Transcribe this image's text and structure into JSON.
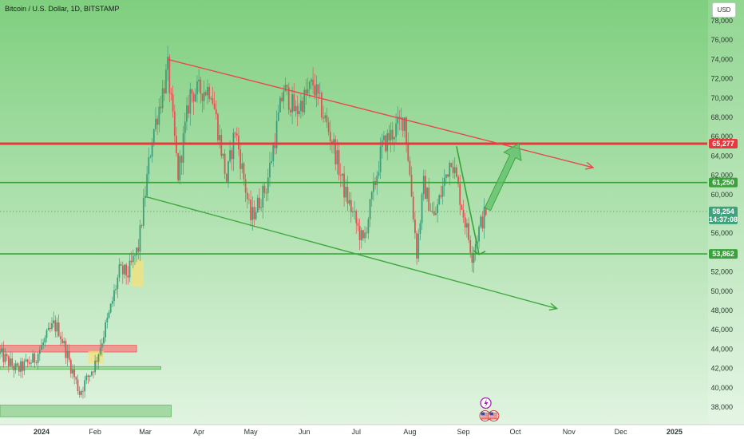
{
  "header": {
    "title": "Bitcoin / U.S. Dollar, 1D, BITSTAMP",
    "currency": "USD"
  },
  "colors": {
    "background_top": "#7fcf7f",
    "background_bottom": "#e4f5e4",
    "up_candle": "#3f9e7a",
    "down_candle": "#e35353",
    "resistance": "#e8383d",
    "support": "#3aa23a",
    "trend_upper": "#e8484d",
    "trend_lower": "#3fa83f",
    "zone_red": "#f28b8b",
    "zone_green": "#9ad49a",
    "highlight": "#f5e27a"
  },
  "chart_data": {
    "type": "candlestick",
    "title": "Bitcoin / U.S. Dollar, 1D, BITSTAMP",
    "x_unit": "date",
    "x_range": [
      "2023-12-08",
      "2025-01-20"
    ],
    "ylim": [
      37000,
      79000
    ],
    "yticks": [
      38000,
      40000,
      42000,
      44000,
      46000,
      48000,
      50000,
      52000,
      54000,
      56000,
      60000,
      62000,
      64000,
      66000,
      68000,
      70000,
      72000,
      74000,
      76000,
      78000
    ],
    "ytick_labels": [
      "38,000",
      "40,000",
      "42,000",
      "44,000",
      "46,000",
      "48,000",
      "50,000",
      "52,000",
      "54,000",
      "56,000",
      "60,000",
      "62,000",
      "64,000",
      "66,000",
      "68,000",
      "70,000",
      "72,000",
      "74,000",
      "76,000",
      "78,000"
    ],
    "months": [
      {
        "date": "2024-01-01",
        "label": "2024"
      },
      {
        "date": "2024-02-01",
        "label": "Feb"
      },
      {
        "date": "2024-03-01",
        "label": "Mar"
      },
      {
        "date": "2024-04-01",
        "label": "Apr"
      },
      {
        "date": "2024-05-01",
        "label": "May"
      },
      {
        "date": "2024-06-01",
        "label": "Jun"
      },
      {
        "date": "2024-07-01",
        "label": "Jul"
      },
      {
        "date": "2024-08-01",
        "label": "Aug"
      },
      {
        "date": "2024-09-01",
        "label": "Sep"
      },
      {
        "date": "2024-10-01",
        "label": "Oct"
      },
      {
        "date": "2024-11-01",
        "label": "Nov"
      },
      {
        "date": "2024-12-01",
        "label": "Dec"
      },
      {
        "date": "2025-01-01",
        "label": "2025"
      }
    ],
    "price_path": [
      [
        "2023-12-08",
        43500
      ],
      [
        "2023-12-18",
        41800
      ],
      [
        "2023-12-28",
        43000
      ],
      [
        "2024-01-08",
        46500
      ],
      [
        "2024-01-11",
        46000
      ],
      [
        "2024-01-23",
        39500
      ],
      [
        "2024-02-01",
        42500
      ],
      [
        "2024-02-09",
        47500
      ],
      [
        "2024-02-15",
        52000
      ],
      [
        "2024-02-20",
        51800
      ],
      [
        "2024-02-26",
        54500
      ],
      [
        "2024-03-05",
        66000
      ],
      [
        "2024-03-14",
        73000
      ],
      [
        "2024-03-20",
        62000
      ],
      [
        "2024-03-27",
        70500
      ],
      [
        "2024-04-08",
        71000
      ],
      [
        "2024-04-17",
        61500
      ],
      [
        "2024-04-22",
        66800
      ],
      [
        "2024-05-01",
        57500
      ],
      [
        "2024-05-10",
        60800
      ],
      [
        "2024-05-20",
        71000
      ],
      [
        "2024-05-27",
        68500
      ],
      [
        "2024-06-06",
        71500
      ],
      [
        "2024-06-18",
        65000
      ],
      [
        "2024-06-24",
        60500
      ],
      [
        "2024-07-05",
        55000
      ],
      [
        "2024-07-16",
        65000
      ],
      [
        "2024-07-29",
        68000
      ],
      [
        "2024-08-05",
        54000
      ],
      [
        "2024-08-09",
        61000
      ],
      [
        "2024-08-15",
        57500
      ],
      [
        "2024-08-25",
        64000
      ],
      [
        "2024-09-06",
        53800
      ],
      [
        "2024-09-11",
        57000
      ],
      [
        "2024-09-14",
        58254
      ]
    ],
    "price_levels": [
      {
        "value": 65277,
        "label": "65,277",
        "type": "resistance"
      },
      {
        "value": 61250,
        "label": "61,250",
        "type": "support"
      },
      {
        "value": 53862,
        "label": "53,862",
        "type": "support"
      }
    ],
    "current_price": {
      "value": 58254,
      "label": "58,254",
      "countdown": "14:37:08"
    },
    "trend_lines": [
      {
        "type": "upper",
        "from": [
          "2024-03-14",
          74000
        ],
        "to": [
          "2024-10-07",
          65277
        ],
        "extends_to": [
          "2024-11-15",
          62800
        ]
      },
      {
        "type": "lower",
        "from": [
          "2024-03-01",
          59800
        ],
        "to": [
          "2024-10-25",
          48200
        ]
      }
    ],
    "annotations": [
      {
        "type": "arrow",
        "from": [
          "2024-08-28",
          65000
        ],
        "to": [
          "2024-09-10",
          53800
        ]
      },
      {
        "type": "arrow",
        "from": [
          "2024-09-15",
          58500
        ],
        "to": [
          "2024-10-03",
          65300
        ]
      }
    ],
    "zones": [
      {
        "type": "red",
        "from": "2023-12-08",
        "to": "2024-02-25",
        "low": 43700,
        "high": 44400
      },
      {
        "type": "green",
        "from": "2023-12-08",
        "to": "2024-03-10",
        "low": 41900,
        "high": 42200
      },
      {
        "type": "green",
        "from": "2023-12-08",
        "to": "2024-03-16",
        "low": 37000,
        "high": 38200
      }
    ],
    "highlights": [
      {
        "from": "2024-02-22",
        "to": "2024-02-29",
        "low": 50500,
        "high": 53200
      },
      {
        "from": "2024-01-28",
        "to": "2024-02-06",
        "low": 42500,
        "high": 43800
      }
    ],
    "event_icons": [
      {
        "name": "lightning-icon",
        "date": "2024-09-13"
      },
      {
        "name": "us-flag-icon",
        "date": "2024-09-13"
      },
      {
        "name": "us-flag-icon",
        "date": "2024-09-18"
      }
    ]
  }
}
